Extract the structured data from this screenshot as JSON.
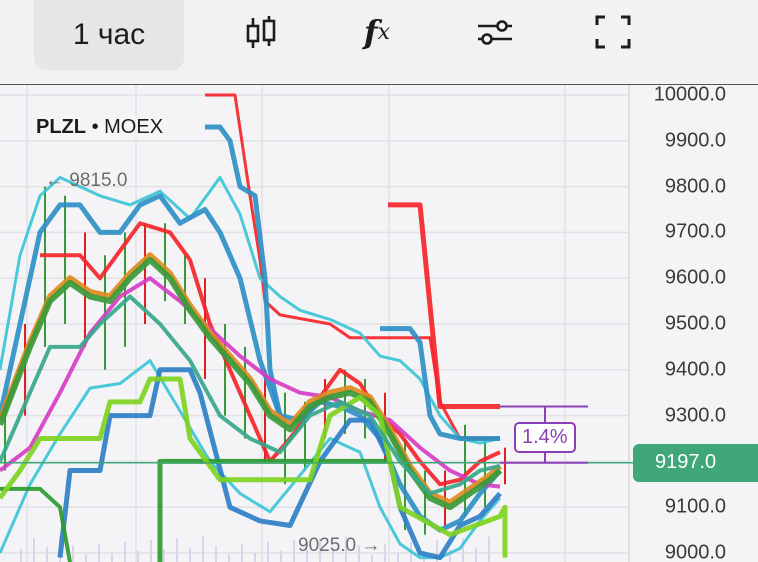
{
  "toolbar": {
    "timeframe": "1 час",
    "icons": [
      "candlestick-icon",
      "function-fx-icon",
      "sliders-icon",
      "fullscreen-icon"
    ],
    "fx_label": "f",
    "fx_sub": "x"
  },
  "chart": {
    "symbol": "PLZL",
    "separator": "•",
    "exchange": "MOEX",
    "current_price": "9197.0",
    "current_price_color": "#3fa77a",
    "max_label": "← 9815.0",
    "min_label": "9025.0 →",
    "measure_percent": "1.4%",
    "measure_color": "#8a3fb5"
  },
  "chart_data": {
    "type": "line",
    "ylim": [
      9000,
      10000
    ],
    "yticks": [
      "10000.0",
      "9900.0",
      "9800.0",
      "9700.0",
      "9600.0",
      "9500.0",
      "9400.0",
      "9300.0",
      "9200.0",
      "9100.0",
      "9000.0"
    ],
    "grid": true,
    "current_price": 9197,
    "measure": [
      9197,
      9320
    ],
    "candles": [
      [
        9180,
        9320
      ],
      [
        9300,
        9500
      ],
      [
        9450,
        9800
      ],
      [
        9500,
        9780
      ],
      [
        9450,
        9700
      ],
      [
        9400,
        9650
      ],
      [
        9450,
        9700
      ],
      [
        9500,
        9720
      ],
      [
        9550,
        9720
      ],
      [
        9500,
        9650
      ],
      [
        9380,
        9600
      ],
      [
        9300,
        9500
      ],
      [
        9250,
        9450
      ],
      [
        9200,
        9400
      ],
      [
        9150,
        9350
      ],
      [
        9180,
        9330
      ],
      [
        9250,
        9380
      ],
      [
        9260,
        9400
      ],
      [
        9250,
        9380
      ],
      [
        9200,
        9350
      ],
      [
        9050,
        9250
      ],
      [
        9040,
        9180
      ],
      [
        9060,
        9180
      ],
      [
        9080,
        9280
      ],
      [
        9100,
        9250
      ],
      [
        9150,
        9230
      ]
    ],
    "series": [
      {
        "color": "#f5242a",
        "width": 3,
        "points": [
          [
            20.5,
            10000
          ],
          [
            23.5,
            10000
          ],
          [
            25,
            9780
          ],
          [
            26,
            9640
          ],
          [
            26.5,
            9550
          ],
          [
            28,
            9520
          ],
          [
            33,
            9500
          ],
          [
            35,
            9470
          ],
          [
            43,
            9470
          ],
          [
            44,
            9330
          ],
          [
            46,
            9250
          ],
          [
            50,
            9250
          ]
        ]
      },
      {
        "color": "#f5242a",
        "width": 5,
        "points": [
          [
            38.8,
            9760
          ],
          [
            42,
            9760
          ],
          [
            44,
            9320
          ],
          [
            50,
            9320
          ]
        ]
      },
      {
        "color": "#f5242a",
        "width": 4,
        "points": [
          [
            4,
            9650
          ],
          [
            8,
            9650
          ],
          [
            10,
            9600
          ],
          [
            14,
            9720
          ],
          [
            17,
            9700
          ],
          [
            19,
            9640
          ],
          [
            21,
            9500
          ],
          [
            23,
            9400
          ],
          [
            25,
            9300
          ],
          [
            27,
            9200
          ],
          [
            29,
            9250
          ],
          [
            34,
            9400
          ],
          [
            36,
            9370
          ],
          [
            38,
            9300
          ],
          [
            40,
            9260
          ],
          [
            42,
            9200
          ],
          [
            44,
            9150
          ],
          [
            46,
            9160
          ],
          [
            48,
            9200
          ],
          [
            50,
            9220
          ]
        ]
      },
      {
        "color": "#3cc4d6",
        "width": 3,
        "points": [
          [
            0,
            9400
          ],
          [
            2,
            9650
          ],
          [
            4,
            9780
          ],
          [
            6,
            9820
          ],
          [
            8,
            9800
          ],
          [
            10,
            9780
          ],
          [
            13,
            9760
          ],
          [
            16,
            9790
          ],
          [
            19,
            9730
          ],
          [
            22,
            9820
          ],
          [
            24,
            9740
          ],
          [
            26,
            9600
          ],
          [
            28,
            9560
          ],
          [
            30,
            9530
          ],
          [
            33,
            9510
          ],
          [
            36,
            9480
          ],
          [
            38,
            9430
          ],
          [
            40,
            9420
          ],
          [
            42,
            9380
          ],
          [
            44,
            9300
          ],
          [
            46,
            9250
          ],
          [
            48,
            9240
          ],
          [
            50,
            9250
          ]
        ]
      },
      {
        "color": "#3cc4d6",
        "width": 3,
        "points": [
          [
            0,
            9000
          ],
          [
            3,
            9150
          ],
          [
            6,
            9260
          ],
          [
            9,
            9360
          ],
          [
            12,
            9370
          ],
          [
            15,
            9420
          ],
          [
            18,
            9310
          ],
          [
            21,
            9200
          ],
          [
            24,
            9130
          ],
          [
            27,
            9090
          ],
          [
            30,
            9170
          ],
          [
            33,
            9250
          ],
          [
            36,
            9220
          ],
          [
            38,
            9100
          ],
          [
            40,
            9020
          ],
          [
            42,
            8990
          ],
          [
            44,
            8990
          ],
          [
            46,
            9010
          ],
          [
            48,
            9070
          ],
          [
            50,
            9120
          ]
        ]
      },
      {
        "color": "#2e8fc4",
        "width": 5,
        "points": [
          [
            0,
            9300
          ],
          [
            2,
            9500
          ],
          [
            4,
            9700
          ],
          [
            6,
            9760
          ],
          [
            8,
            9760
          ],
          [
            10,
            9700
          ],
          [
            12,
            9700
          ],
          [
            14,
            9760
          ],
          [
            16,
            9780
          ],
          [
            18,
            9720
          ],
          [
            20.5,
            9750
          ],
          [
            22,
            9700
          ],
          [
            24,
            9600
          ],
          [
            26,
            9420
          ],
          [
            28,
            9300
          ],
          [
            30,
            9290
          ],
          [
            32,
            9330
          ],
          [
            34,
            9320
          ],
          [
            36,
            9300
          ],
          [
            38,
            9250
          ],
          [
            40,
            9150
          ],
          [
            42,
            9080
          ],
          [
            44,
            9050
          ],
          [
            46,
            9070
          ],
          [
            48,
            9130
          ],
          [
            50,
            9180
          ]
        ]
      },
      {
        "color": "#2e8fc4",
        "width": 5,
        "points": [
          [
            20.5,
            9930
          ],
          [
            22,
            9930
          ],
          [
            23,
            9900
          ],
          [
            24,
            9800
          ],
          [
            25.5,
            9780
          ],
          [
            26.5,
            9600
          ],
          [
            27,
            9400
          ],
          [
            28,
            9300
          ]
        ]
      },
      {
        "color": "#2e8fc4",
        "width": 5,
        "points": [
          [
            38,
            9490
          ],
          [
            41,
            9490
          ],
          [
            42,
            9460
          ],
          [
            43,
            9300
          ],
          [
            44,
            9260
          ],
          [
            46,
            9250
          ],
          [
            50,
            9250
          ]
        ]
      },
      {
        "color": "#2e7fc4",
        "width": 5,
        "points": [
          [
            6,
            8990
          ],
          [
            7,
            9180
          ],
          [
            10,
            9180
          ],
          [
            11,
            9300
          ],
          [
            15,
            9300
          ],
          [
            16,
            9400
          ],
          [
            19,
            9400
          ],
          [
            20,
            9350
          ],
          [
            23,
            9100
          ],
          [
            26,
            9070
          ],
          [
            29,
            9060
          ],
          [
            32,
            9200
          ],
          [
            35,
            9290
          ],
          [
            37,
            9290
          ],
          [
            39,
            9200
          ],
          [
            40,
            9100
          ],
          [
            42,
            9000
          ],
          [
            44,
            8990
          ],
          [
            46,
            9060
          ],
          [
            48,
            9080
          ],
          [
            50,
            9130
          ]
        ]
      },
      {
        "color": "#d63cc4",
        "width": 4,
        "points": [
          [
            0,
            9180
          ],
          [
            3,
            9230
          ],
          [
            6,
            9350
          ],
          [
            9,
            9480
          ],
          [
            12,
            9560
          ],
          [
            15,
            9600
          ],
          [
            18,
            9550
          ],
          [
            21,
            9490
          ],
          [
            24,
            9430
          ],
          [
            27,
            9380
          ],
          [
            30,
            9350
          ],
          [
            33,
            9340
          ],
          [
            36,
            9310
          ],
          [
            39,
            9290
          ],
          [
            42,
            9230
          ],
          [
            45,
            9180
          ],
          [
            48,
            9150
          ],
          [
            50,
            9145
          ]
        ]
      },
      {
        "color": "#e08a1e",
        "width": 6,
        "points": [
          [
            0,
            9290
          ],
          [
            3,
            9460
          ],
          [
            5,
            9560
          ],
          [
            7,
            9600
          ],
          [
            9,
            9570
          ],
          [
            11,
            9560
          ],
          [
            13,
            9610
          ],
          [
            15,
            9650
          ],
          [
            17,
            9610
          ],
          [
            19,
            9540
          ],
          [
            21,
            9480
          ],
          [
            23,
            9430
          ],
          [
            25,
            9380
          ],
          [
            27,
            9310
          ],
          [
            29,
            9280
          ],
          [
            31,
            9330
          ],
          [
            33,
            9350
          ],
          [
            35,
            9360
          ],
          [
            37,
            9340
          ],
          [
            39,
            9270
          ],
          [
            41,
            9190
          ],
          [
            43,
            9130
          ],
          [
            45,
            9110
          ],
          [
            47,
            9140
          ],
          [
            49,
            9170
          ],
          [
            50,
            9190
          ]
        ]
      },
      {
        "color": "#3a9a3a",
        "width": 6,
        "points": [
          [
            0,
            9280
          ],
          [
            3,
            9450
          ],
          [
            5,
            9550
          ],
          [
            7,
            9590
          ],
          [
            9,
            9560
          ],
          [
            11,
            9550
          ],
          [
            13,
            9600
          ],
          [
            15,
            9640
          ],
          [
            17,
            9600
          ],
          [
            19,
            9530
          ],
          [
            21,
            9470
          ],
          [
            23,
            9420
          ],
          [
            25,
            9370
          ],
          [
            27,
            9300
          ],
          [
            29,
            9270
          ],
          [
            31,
            9320
          ],
          [
            33,
            9340
          ],
          [
            35,
            9350
          ],
          [
            37,
            9330
          ],
          [
            39,
            9260
          ],
          [
            41,
            9180
          ],
          [
            43,
            9120
          ],
          [
            45,
            9100
          ],
          [
            47,
            9130
          ],
          [
            49,
            9160
          ],
          [
            50,
            9180
          ]
        ]
      },
      {
        "color": "#2c9a2c",
        "width": 5,
        "points": [
          [
            16,
            8980
          ],
          [
            16,
            9200
          ],
          [
            39,
            9200
          ]
        ]
      },
      {
        "color": "#2c9a2c",
        "width": 4,
        "points": [
          [
            0,
            9140
          ],
          [
            4,
            9140
          ],
          [
            6,
            9100
          ],
          [
            7,
            8980
          ]
        ]
      },
      {
        "color": "#7ed321",
        "width": 5,
        "points": [
          [
            0,
            9120
          ],
          [
            2,
            9180
          ],
          [
            4,
            9250
          ],
          [
            10,
            9250
          ],
          [
            11,
            9330
          ],
          [
            14,
            9330
          ],
          [
            15,
            9380
          ],
          [
            18,
            9380
          ],
          [
            19,
            9250
          ],
          [
            22,
            9160
          ],
          [
            31,
            9160
          ],
          [
            33,
            9300
          ],
          [
            36,
            9340
          ],
          [
            38,
            9300
          ],
          [
            40,
            9100
          ],
          [
            45,
            9040
          ],
          [
            50,
            9080
          ],
          [
            50.5,
            9100
          ],
          [
            50.5,
            8990
          ]
        ]
      },
      {
        "color": "#36a88a",
        "width": 4,
        "points": [
          [
            0,
            9200
          ],
          [
            2,
            9300
          ],
          [
            5,
            9450
          ],
          [
            8,
            9450
          ],
          [
            10,
            9500
          ],
          [
            13,
            9560
          ],
          [
            16,
            9500
          ],
          [
            19,
            9420
          ],
          [
            22,
            9300
          ],
          [
            25,
            9250
          ],
          [
            28,
            9220
          ],
          [
            31,
            9300
          ],
          [
            34,
            9330
          ],
          [
            37,
            9300
          ],
          [
            40,
            9200
          ],
          [
            43,
            9130
          ],
          [
            46,
            9150
          ],
          [
            48,
            9180
          ],
          [
            50,
            9190
          ]
        ]
      }
    ]
  }
}
